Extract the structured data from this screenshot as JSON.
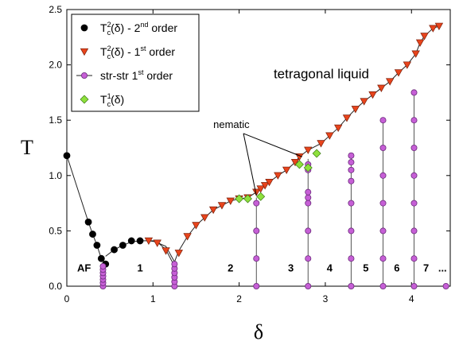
{
  "chart_data": {
    "type": "scatter",
    "xlabel": "δ",
    "ylabel": "T",
    "xlim": [
      0,
      4.45
    ],
    "ylim": [
      0,
      2.5
    ],
    "x_ticks": [
      0,
      1,
      2,
      3,
      4
    ],
    "y_ticks": [
      0.0,
      0.5,
      1.0,
      1.5,
      2.0,
      2.5
    ],
    "x_tick_labels": [
      "0",
      "1",
      "2",
      "3",
      "4"
    ],
    "y_tick_labels": [
      "0.0",
      "0.5",
      "1.0",
      "1.5",
      "2.0",
      "2.5"
    ],
    "grid": false,
    "legend_position": "top-left",
    "legend": [
      {
        "marker": "circle",
        "color": "#000000",
        "base": "T",
        "sub": "c",
        "sup": "2",
        "tail": "(δ) - 2",
        "tail_sup": "nd",
        "tail2": " order"
      },
      {
        "marker": "triangle-down",
        "color": "#e8441c",
        "base": "T",
        "sub": "c",
        "sup": "2",
        "tail": "(δ) - 1",
        "tail_sup": "st",
        "tail2": " order"
      },
      {
        "marker": "circle-line",
        "color": "#c65fd6",
        "base": "str-str 1",
        "sub": "",
        "sup": "",
        "tail": "",
        "tail_sup": "st",
        "tail2": " order"
      },
      {
        "marker": "diamond",
        "color": "#8ee03c",
        "base": "T",
        "sub": "c",
        "sup": "1",
        "tail": "(δ)",
        "tail_sup": "",
        "tail2": ""
      }
    ],
    "series": [
      {
        "marker": "circle",
        "color": "#000000",
        "line": [
          [
            0.0,
            1.18
          ],
          [
            0.25,
            0.58
          ],
          [
            0.3,
            0.47
          ],
          [
            0.35,
            0.37
          ],
          [
            0.4,
            0.25
          ],
          [
            0.45,
            0.2
          ]
        ],
        "line2": [
          [
            0.45,
            0.27
          ],
          [
            0.55,
            0.33
          ],
          [
            0.65,
            0.37
          ],
          [
            0.75,
            0.4
          ],
          [
            0.85,
            0.41
          ],
          [
            1.0,
            0.41
          ],
          [
            1.15,
            0.36
          ],
          [
            1.25,
            0.22
          ]
        ],
        "points": [
          [
            0.0,
            1.18
          ],
          [
            0.25,
            0.58
          ],
          [
            0.3,
            0.47
          ],
          [
            0.35,
            0.37
          ],
          [
            0.4,
            0.25
          ],
          [
            0.45,
            0.2
          ],
          [
            0.55,
            0.33
          ],
          [
            0.65,
            0.37
          ],
          [
            0.75,
            0.41
          ],
          [
            0.85,
            0.41
          ]
        ]
      },
      {
        "marker": "triangle-down",
        "color": "#e8441c",
        "line": [
          [
            0.95,
            0.41
          ],
          [
            1.05,
            0.4
          ],
          [
            1.15,
            0.33
          ],
          [
            1.25,
            0.18
          ],
          [
            1.25,
            0.22
          ],
          [
            1.3,
            0.32
          ],
          [
            1.4,
            0.45
          ],
          [
            1.5,
            0.55
          ],
          [
            1.6,
            0.62
          ],
          [
            1.7,
            0.69
          ],
          [
            1.8,
            0.73
          ],
          [
            1.9,
            0.77
          ],
          [
            2.0,
            0.79
          ],
          [
            2.1,
            0.8
          ],
          [
            2.2,
            0.85
          ],
          [
            2.25,
            0.88
          ],
          [
            2.3,
            0.91
          ],
          [
            2.35,
            0.94
          ],
          [
            2.45,
            1.0
          ],
          [
            2.55,
            1.05
          ],
          [
            2.65,
            1.12
          ],
          [
            2.7,
            1.17
          ],
          [
            2.8,
            1.23
          ],
          [
            2.95,
            1.29
          ],
          [
            3.05,
            1.36
          ],
          [
            3.15,
            1.43
          ],
          [
            3.25,
            1.52
          ],
          [
            3.35,
            1.6
          ],
          [
            3.45,
            1.67
          ],
          [
            3.55,
            1.73
          ],
          [
            3.65,
            1.79
          ],
          [
            3.75,
            1.85
          ],
          [
            3.85,
            1.93
          ],
          [
            3.95,
            2.0
          ],
          [
            4.05,
            2.1
          ],
          [
            4.1,
            2.2
          ],
          [
            4.15,
            2.26
          ],
          [
            4.25,
            2.33
          ],
          [
            4.32,
            2.35
          ]
        ],
        "points": [
          [
            0.95,
            0.41
          ],
          [
            1.05,
            0.39
          ],
          [
            1.15,
            0.32
          ],
          [
            1.3,
            0.3
          ],
          [
            1.4,
            0.45
          ],
          [
            1.5,
            0.55
          ],
          [
            1.6,
            0.62
          ],
          [
            1.7,
            0.69
          ],
          [
            1.8,
            0.73
          ],
          [
            1.9,
            0.77
          ],
          [
            2.0,
            0.79
          ],
          [
            2.1,
            0.8
          ],
          [
            2.2,
            0.85
          ],
          [
            2.25,
            0.88
          ],
          [
            2.3,
            0.91
          ],
          [
            2.35,
            0.94
          ],
          [
            2.45,
            1.0
          ],
          [
            2.55,
            1.05
          ],
          [
            2.65,
            1.12
          ],
          [
            2.7,
            1.17
          ],
          [
            2.8,
            1.23
          ],
          [
            2.95,
            1.29
          ],
          [
            3.05,
            1.36
          ],
          [
            3.15,
            1.43
          ],
          [
            3.25,
            1.52
          ],
          [
            3.35,
            1.6
          ],
          [
            3.45,
            1.67
          ],
          [
            3.55,
            1.73
          ],
          [
            3.65,
            1.79
          ],
          [
            3.75,
            1.85
          ],
          [
            3.85,
            1.93
          ],
          [
            3.95,
            2.0
          ],
          [
            4.05,
            2.1
          ],
          [
            4.1,
            2.2
          ],
          [
            4.15,
            2.26
          ],
          [
            4.25,
            2.33
          ],
          [
            4.32,
            2.35
          ]
        ]
      },
      {
        "marker": "circle-line",
        "color": "#c65fd6",
        "lines": [
          [
            [
              0.42,
              0.0
            ],
            [
              0.42,
              0.2
            ]
          ],
          [
            [
              1.25,
              0.0
            ],
            [
              1.25,
              0.2
            ]
          ],
          [
            [
              2.2,
              0.0
            ],
            [
              2.2,
              0.8
            ]
          ],
          [
            [
              2.8,
              0.0
            ],
            [
              2.8,
              1.15
            ]
          ],
          [
            [
              3.3,
              0.0
            ],
            [
              3.3,
              1.18
            ]
          ],
          [
            [
              3.67,
              0.0
            ],
            [
              3.67,
              1.5
            ]
          ],
          [
            [
              4.03,
              0.0
            ],
            [
              4.03,
              1.75
            ]
          ]
        ],
        "points": [
          [
            0.42,
            0.0
          ],
          [
            0.42,
            0.03
          ],
          [
            0.42,
            0.06
          ],
          [
            0.42,
            0.09
          ],
          [
            0.42,
            0.12
          ],
          [
            0.42,
            0.15
          ],
          [
            0.42,
            0.18
          ],
          [
            1.25,
            0.0
          ],
          [
            1.25,
            0.04
          ],
          [
            1.25,
            0.08
          ],
          [
            1.25,
            0.12
          ],
          [
            1.25,
            0.16
          ],
          [
            1.25,
            0.2
          ],
          [
            2.2,
            0.0
          ],
          [
            2.2,
            0.25
          ],
          [
            2.2,
            0.5
          ],
          [
            2.2,
            0.75
          ],
          [
            2.8,
            0.0
          ],
          [
            2.8,
            0.25
          ],
          [
            2.8,
            0.5
          ],
          [
            2.8,
            0.75
          ],
          [
            2.8,
            0.8
          ],
          [
            2.8,
            0.85
          ],
          [
            2.8,
            1.05
          ],
          [
            2.8,
            1.1
          ],
          [
            3.3,
            0.0
          ],
          [
            3.3,
            0.25
          ],
          [
            3.3,
            0.5
          ],
          [
            3.3,
            0.75
          ],
          [
            3.3,
            0.95
          ],
          [
            3.3,
            1.05
          ],
          [
            3.3,
            1.12
          ],
          [
            3.3,
            1.18
          ],
          [
            3.67,
            0.0
          ],
          [
            3.67,
            0.25
          ],
          [
            3.67,
            0.5
          ],
          [
            3.67,
            0.75
          ],
          [
            3.67,
            1.0
          ],
          [
            3.67,
            1.25
          ],
          [
            3.67,
            1.5
          ],
          [
            4.03,
            0.0
          ],
          [
            4.03,
            0.25
          ],
          [
            4.03,
            0.5
          ],
          [
            4.03,
            0.75
          ],
          [
            4.03,
            1.0
          ],
          [
            4.03,
            1.25
          ],
          [
            4.03,
            1.5
          ],
          [
            4.03,
            1.75
          ],
          [
            4.4,
            0.0
          ]
        ]
      },
      {
        "marker": "diamond",
        "color": "#8ee03c",
        "points": [
          [
            2.0,
            0.79
          ],
          [
            2.1,
            0.79
          ],
          [
            2.25,
            0.81
          ],
          [
            2.7,
            1.1
          ],
          [
            2.8,
            1.07
          ],
          [
            2.9,
            1.2
          ]
        ]
      }
    ],
    "annotations": [
      {
        "text": "tetragonal liquid",
        "x": 2.4,
        "y": 1.88,
        "cls": "annot"
      },
      {
        "text": "nematic",
        "x": 1.7,
        "y": 1.43,
        "cls": "annot-small"
      }
    ],
    "nematic_arrows": [
      {
        "from": [
          2.05,
          1.38
        ],
        "to": [
          2.2,
          0.82
        ]
      },
      {
        "from": [
          2.05,
          1.38
        ],
        "to": [
          2.73,
          1.17
        ]
      }
    ],
    "region_labels": [
      {
        "text": "AF",
        "x": 0.2
      },
      {
        "text": "1",
        "x": 0.85
      },
      {
        "text": "2",
        "x": 1.9
      },
      {
        "text": "3",
        "x": 2.6
      },
      {
        "text": "4",
        "x": 3.05
      },
      {
        "text": "5",
        "x": 3.47
      },
      {
        "text": "6",
        "x": 3.83
      },
      {
        "text": "7",
        "x": 4.17
      },
      {
        "text": "...",
        "x": 4.36
      }
    ],
    "region_label_y": 0.17
  }
}
